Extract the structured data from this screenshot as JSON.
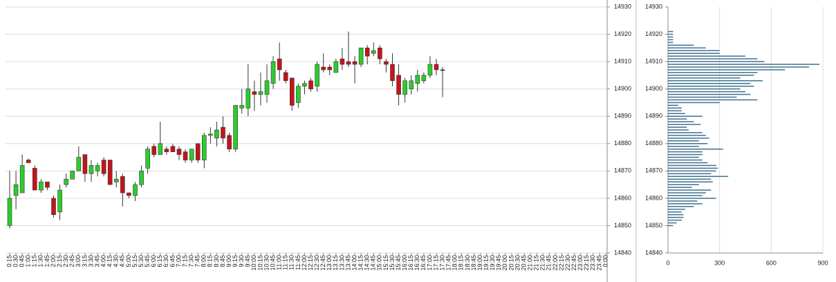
{
  "chart_data": [
    {
      "type": "candlestick",
      "categories": [
        "0:15",
        "0:30",
        "0:45",
        "1:00",
        "1:15",
        "1:30",
        "1:45",
        "2:00",
        "2:15",
        "2:30",
        "2:45",
        "3:00",
        "3:15",
        "3:30",
        "3:45",
        "4:00",
        "4:15",
        "4:30",
        "4:45",
        "5:00",
        "5:15",
        "5:30",
        "5:45",
        "6:00",
        "6:15",
        "6:30",
        "6:45",
        "7:00",
        "7:15",
        "7:30",
        "7:45",
        "8:00",
        "8:15",
        "8:30",
        "8:45",
        "9:00",
        "9:15",
        "9:30",
        "9:45",
        "10:00",
        "10:15",
        "10:30",
        "10:45",
        "11:00",
        "11:15",
        "11:30",
        "11:45",
        "12:00",
        "12:15",
        "12:30",
        "12:45",
        "13:00",
        "13:15",
        "13:30",
        "13:45",
        "14:00",
        "14:15",
        "14:30",
        "14:45",
        "15:00",
        "15:15",
        "15:30",
        "15:45",
        "16:00",
        "16:15",
        "16:30",
        "16:45",
        "17:00",
        "17:15",
        "17:30",
        "17:45",
        "18:00",
        "18:15",
        "18:30",
        "18:45",
        "19:00",
        "19:15",
        "19:30",
        "19:45",
        "20:00",
        "20:15",
        "20:30",
        "20:45",
        "21:00",
        "21:15",
        "21:30",
        "21:45",
        "22:00",
        "22:15",
        "22:30",
        "22:45",
        "23:00",
        "23:15",
        "23:30",
        "23:45",
        "0:00"
      ],
      "open": [
        14850,
        14861,
        14862,
        14874,
        14871,
        14863,
        14866,
        14860,
        14855,
        14865,
        14867,
        14870,
        14876,
        14869,
        14870,
        14874,
        14874,
        14866,
        14868,
        14862,
        14861,
        14865,
        14871,
        14879,
        14876,
        14878,
        14879,
        14878,
        14877,
        14874,
        14880,
        14874,
        14883,
        14882,
        14886,
        14883,
        14878,
        14893,
        14893,
        14899,
        14898,
        14898,
        14902,
        14911,
        14906,
        14904,
        14895,
        14901,
        14903,
        14901,
        14908,
        14908,
        14906,
        14911,
        14910,
        14910,
        14909,
        14915,
        14913,
        14915,
        14910,
        14909,
        14905,
        14898,
        14900,
        14902,
        14903,
        14905,
        14909,
        14907,
        null,
        null,
        null,
        null,
        null,
        null,
        null,
        null,
        null,
        null,
        null,
        null,
        null,
        null,
        null,
        null,
        null,
        null,
        null,
        null,
        null,
        null,
        null,
        null,
        null,
        null
      ],
      "high": [
        14870,
        14870,
        14876,
        14874.5,
        14872,
        14867,
        14866,
        14861,
        14865,
        14869,
        14870,
        14879,
        14876,
        14874,
        14873,
        14875,
        14874,
        14870,
        14869,
        14862,
        14866,
        14872,
        14879,
        14880,
        14888,
        14879,
        14880,
        14879,
        14878,
        14878,
        14880,
        14884,
        14886,
        14888,
        14890,
        14884,
        14894,
        14900,
        14909,
        14903,
        14906,
        14909,
        14912,
        14917,
        14907,
        14904,
        14902,
        14903,
        14904,
        14910,
        14913,
        14909,
        14911,
        14915,
        14921,
        14912,
        14915,
        14916,
        14917,
        14916,
        14911,
        14913,
        14909,
        14904,
        14905,
        14907,
        14906,
        14912,
        14911,
        14908,
        null,
        null,
        null,
        null,
        null,
        null,
        null,
        null,
        null,
        null,
        null,
        null,
        null,
        null,
        null,
        null,
        null,
        null,
        null,
        null,
        null,
        null,
        null,
        null,
        null,
        null
      ],
      "low": [
        14849,
        14856,
        14862,
        14873,
        14863,
        14862,
        14863,
        14853,
        14852,
        14864,
        14867,
        14870,
        14866,
        14866,
        14868,
        14868,
        14865,
        14864,
        14857,
        14860,
        14859,
        14864,
        14869,
        14875,
        14876,
        14876,
        14877,
        14874,
        14873,
        14873,
        14873,
        14871,
        14880,
        14879,
        14880,
        14877,
        14877,
        14891,
        14890,
        14892,
        14894,
        14895,
        14900,
        14903,
        14902,
        14892,
        14893,
        14898,
        14899,
        14899,
        14906,
        14905,
        14906,
        14907,
        14908,
        14902,
        14908,
        14909,
        14912,
        14909,
        14906,
        14901,
        14894,
        14895,
        14898,
        14899,
        14902,
        14904,
        14905,
        14897,
        null,
        null,
        null,
        null,
        null,
        null,
        null,
        null,
        null,
        null,
        null,
        null,
        null,
        null,
        null,
        null,
        null,
        null,
        null,
        null,
        null,
        null,
        null,
        null,
        null,
        null
      ],
      "close": [
        14860,
        14865,
        14872,
        14873,
        14863,
        14866,
        14864,
        14854,
        14863,
        14867,
        14870,
        14875,
        14869,
        14872,
        14872,
        14869,
        14865,
        14867,
        14862,
        14861,
        14865,
        14870,
        14878,
        14876,
        14880,
        14877,
        14877,
        14876,
        14874,
        14878,
        14874,
        14883,
        14883.5,
        14885,
        14882,
        14878,
        14894,
        14894,
        14900,
        14898,
        14899,
        14903,
        14910,
        14907,
        14903,
        14894,
        14901,
        14902,
        14900,
        14909,
        14907,
        14907,
        14910,
        14909,
        14909,
        14909,
        14915,
        14912,
        14914,
        14911,
        14909,
        14903,
        14898,
        14903,
        14903,
        14905,
        14905,
        14909,
        14907,
        14907,
        null,
        null,
        null,
        null,
        null,
        null,
        null,
        null,
        null,
        null,
        null,
        null,
        null,
        null,
        null,
        null,
        null,
        null,
        null,
        null,
        null,
        null,
        null,
        null,
        null,
        null
      ],
      "up_color": "#2ccc2c",
      "down_color": "#c4141c",
      "ylim": [
        14840,
        14930
      ],
      "yticks": [
        14840,
        14850,
        14860,
        14870,
        14880,
        14890,
        14900,
        14910,
        14920,
        14930
      ],
      "grid": true
    },
    {
      "type": "barh",
      "y": [
        14850,
        14851,
        14852,
        14853,
        14854,
        14855,
        14856,
        14857,
        14858,
        14859,
        14860,
        14861,
        14862,
        14863,
        14864,
        14865,
        14866,
        14867,
        14868,
        14869,
        14870,
        14871,
        14872,
        14873,
        14874,
        14875,
        14876,
        14877,
        14878,
        14879,
        14880,
        14881,
        14882,
        14883,
        14884,
        14885,
        14886,
        14887,
        14888,
        14889,
        14890,
        14891,
        14892,
        14893,
        14894,
        14895,
        14896,
        14897,
        14898,
        14899,
        14900,
        14901,
        14902,
        14903,
        14904,
        14905,
        14906,
        14907,
        14908,
        14909,
        14910,
        14911,
        14912,
        14913,
        14914,
        14915,
        14916,
        14917,
        14918,
        14919,
        14920,
        14921
      ],
      "values": [
        30,
        50,
        80,
        90,
        90,
        80,
        100,
        150,
        200,
        170,
        280,
        200,
        220,
        250,
        140,
        180,
        260,
        250,
        350,
        250,
        280,
        290,
        280,
        230,
        200,
        180,
        200,
        200,
        320,
        180,
        230,
        180,
        240,
        220,
        200,
        120,
        110,
        190,
        150,
        110,
        200,
        100,
        80,
        80,
        60,
        300,
        520,
        400,
        480,
        450,
        420,
        500,
        480,
        550,
        420,
        500,
        520,
        680,
        820,
        880,
        560,
        520,
        450,
        300,
        300,
        220,
        150,
        30,
        30,
        30,
        30,
        30
      ],
      "color": "#3e6f90",
      "xlim": [
        0,
        900
      ],
      "xticks": [
        0,
        300,
        600,
        900
      ],
      "ylim": [
        14840,
        14930
      ],
      "yticks": [
        14840,
        14850,
        14860,
        14870,
        14880,
        14890,
        14900,
        14910,
        14920,
        14930
      ],
      "grid": true
    }
  ]
}
